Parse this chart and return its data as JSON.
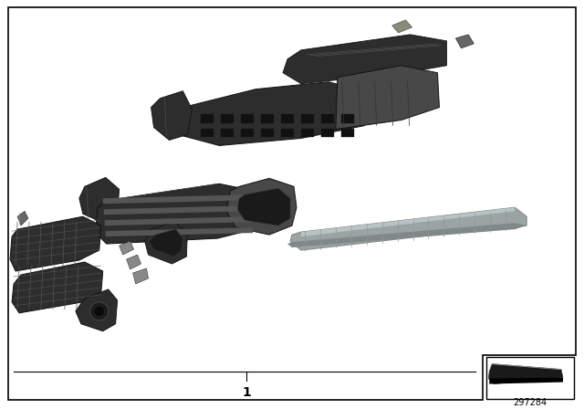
{
  "bg_color": "#ffffff",
  "border_color": "#000000",
  "part_number": "1",
  "doc_number": "297284",
  "fig_width": 6.4,
  "fig_height": 4.48,
  "dpi": 100,
  "dark": "#2d2d2d",
  "mid": "#484848",
  "lite": "#787878",
  "silver": "#9aa4a4",
  "silver_light": "#b8c4c4"
}
